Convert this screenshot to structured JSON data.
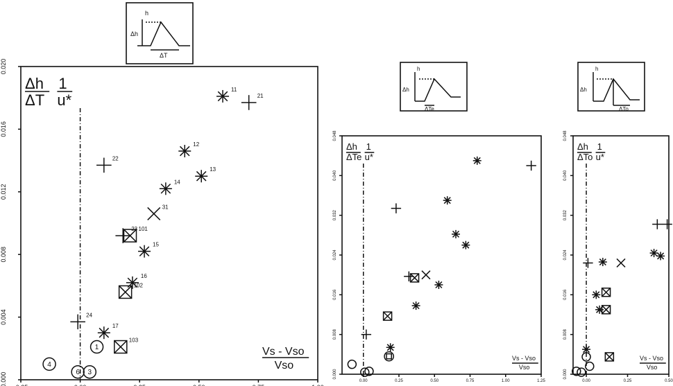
{
  "chart_data": [
    {
      "type": "scatter",
      "ylabel_num": "Δh",
      "ylabel_den": "ΔT",
      "ylabel_frac_num": "1",
      "ylabel_frac_den": "u*",
      "xlabel_num": "Vs - Vso",
      "xlabel_den": "Vso",
      "xlim": [
        -0.25,
        1.0
      ],
      "ylim": [
        0.0,
        0.02
      ],
      "xticks": [
        -0.25,
        0.0,
        0.25,
        0.5,
        0.75,
        1.0
      ],
      "xtick_labels": [
        "-0.25",
        "0.00",
        "0.25",
        "0.50",
        "0.75",
        "1.00"
      ],
      "yticks": [
        0.0,
        0.004,
        0.008,
        0.012,
        0.016,
        0.02
      ],
      "ytick_labels": [
        "0.000",
        "0.004",
        "0.008",
        "0.012",
        "0.016",
        "0.020"
      ],
      "points": [
        {
          "label": "11",
          "x": 0.6,
          "y": 0.0181,
          "marker": "asterisk"
        },
        {
          "label": "21",
          "x": 0.71,
          "y": 0.0177,
          "marker": "plus"
        },
        {
          "label": "12",
          "x": 0.44,
          "y": 0.0146,
          "marker": "asterisk"
        },
        {
          "label": "22",
          "x": 0.1,
          "y": 0.0137,
          "marker": "plus"
        },
        {
          "label": "13",
          "x": 0.51,
          "y": 0.013,
          "marker": "asterisk"
        },
        {
          "label": "14",
          "x": 0.36,
          "y": 0.0122,
          "marker": "asterisk"
        },
        {
          "label": "31",
          "x": 0.31,
          "y": 0.0106,
          "marker": "cross"
        },
        {
          "label": "101",
          "x": 0.21,
          "y": 0.0092,
          "marker": "boxcross"
        },
        {
          "label": "23",
          "x": 0.18,
          "y": 0.0092,
          "marker": "plus"
        },
        {
          "label": "15",
          "x": 0.27,
          "y": 0.0082,
          "marker": "asterisk"
        },
        {
          "label": "16",
          "x": 0.22,
          "y": 0.0062,
          "marker": "asterisk"
        },
        {
          "label": "102",
          "x": 0.19,
          "y": 0.0056,
          "marker": "boxcross"
        },
        {
          "label": "24",
          "x": -0.01,
          "y": 0.0037,
          "marker": "plus"
        },
        {
          "label": "17",
          "x": 0.1,
          "y": 0.003,
          "marker": "asterisk"
        },
        {
          "label": "103",
          "x": 0.17,
          "y": 0.0021,
          "marker": "boxcross"
        },
        {
          "label": "1",
          "x": 0.07,
          "y": 0.0021,
          "marker": "circle"
        },
        {
          "label": "4",
          "x": -0.13,
          "y": 0.001,
          "marker": "circle"
        },
        {
          "label": "6",
          "x": -0.01,
          "y": 0.0005,
          "marker": "circle"
        },
        {
          "label": "3",
          "x": 0.04,
          "y": 0.0005,
          "marker": "circle"
        }
      ]
    },
    {
      "type": "scatter",
      "ylabel_num": "Δh",
      "ylabel_den": "ΔTe",
      "ylabel_frac_num": "1",
      "ylabel_frac_den": "u*",
      "xlabel_num": "Vs - Vso",
      "xlabel_den": "Vso",
      "xlim": [
        -0.15,
        1.25
      ],
      "ylim": [
        0.0,
        0.048
      ],
      "xticks": [
        0.0,
        0.25,
        0.5,
        0.75,
        1.0,
        1.25
      ],
      "xtick_labels": [
        "0.00",
        "0.25",
        "0.50",
        "0.75",
        "1.00",
        "1.25"
      ],
      "yticks": [
        0.0,
        0.008,
        0.016,
        0.024,
        0.032,
        0.04,
        0.048
      ],
      "ytick_labels": [
        "0.000",
        "0.008",
        "0.016",
        "0.024",
        "0.032",
        "0.040",
        "0.048"
      ],
      "points": [
        {
          "x": 0.8,
          "y": 0.043,
          "marker": "asterisk"
        },
        {
          "x": 1.18,
          "y": 0.042,
          "marker": "plus"
        },
        {
          "x": 0.59,
          "y": 0.035,
          "marker": "asterisk"
        },
        {
          "x": 0.23,
          "y": 0.0334,
          "marker": "plus"
        },
        {
          "x": 0.65,
          "y": 0.0282,
          "marker": "asterisk"
        },
        {
          "x": 0.72,
          "y": 0.026,
          "marker": "asterisk"
        },
        {
          "x": 0.44,
          "y": 0.02,
          "marker": "cross"
        },
        {
          "x": 0.32,
          "y": 0.0197,
          "marker": "plus"
        },
        {
          "x": 0.36,
          "y": 0.0194,
          "marker": "boxcross"
        },
        {
          "x": 0.53,
          "y": 0.018,
          "marker": "asterisk"
        },
        {
          "x": 0.37,
          "y": 0.0138,
          "marker": "asterisk"
        },
        {
          "x": 0.17,
          "y": 0.0117,
          "marker": "boxcross"
        },
        {
          "x": 0.02,
          "y": 0.008,
          "marker": "plus"
        },
        {
          "x": 0.19,
          "y": 0.0054,
          "marker": "asterisk"
        },
        {
          "x": 0.18,
          "y": 0.0036,
          "marker": "circlebox"
        },
        {
          "x": -0.08,
          "y": 0.002,
          "marker": "circle"
        },
        {
          "x": 0.01,
          "y": 0.0004,
          "marker": "circle"
        },
        {
          "x": 0.04,
          "y": 0.0006,
          "marker": "circle"
        }
      ]
    },
    {
      "type": "scatter",
      "ylabel_num": "Δh",
      "ylabel_den": "ΔTo",
      "ylabel_frac_num": "1",
      "ylabel_frac_den": "u*",
      "xlabel_num": "Vs - Vso",
      "xlabel_den": "Vso",
      "xlim": [
        -0.08,
        0.5
      ],
      "ylim": [
        0.0,
        0.048
      ],
      "xticks": [
        0.0,
        0.25,
        0.5
      ],
      "xtick_labels": [
        "0.00",
        "0.25",
        "0.50"
      ],
      "yticks": [
        0.0,
        0.008,
        0.016,
        0.024,
        0.032,
        0.04,
        0.048
      ],
      "ytick_labels": [
        "0.000",
        "0.008",
        "0.016",
        "0.024",
        "0.032",
        "0.040",
        "0.048"
      ],
      "points": [
        {
          "x": 0.43,
          "y": 0.0302,
          "marker": "plus"
        },
        {
          "x": 0.49,
          "y": 0.0302,
          "marker": "plus"
        },
        {
          "x": 0.41,
          "y": 0.0244,
          "marker": "asterisk"
        },
        {
          "x": 0.45,
          "y": 0.0238,
          "marker": "asterisk"
        },
        {
          "x": 0.01,
          "y": 0.0224,
          "marker": "plus"
        },
        {
          "x": 0.1,
          "y": 0.0226,
          "marker": "asterisk"
        },
        {
          "x": 0.21,
          "y": 0.0224,
          "marker": "cross"
        },
        {
          "x": 0.12,
          "y": 0.0165,
          "marker": "boxcross"
        },
        {
          "x": 0.06,
          "y": 0.016,
          "marker": "asterisk"
        },
        {
          "x": 0.08,
          "y": 0.013,
          "marker": "asterisk"
        },
        {
          "x": 0.12,
          "y": 0.013,
          "marker": "boxcross"
        },
        {
          "x": 0.0,
          "y": 0.005,
          "marker": "asterisk"
        },
        {
          "x": 0.14,
          "y": 0.0035,
          "marker": "boxcross"
        },
        {
          "x": 0.0,
          "y": 0.0035,
          "marker": "circle"
        },
        {
          "x": -0.06,
          "y": 0.0006,
          "marker": "circle"
        },
        {
          "x": -0.03,
          "y": 0.0004,
          "marker": "circle"
        },
        {
          "x": 0.02,
          "y": 0.0016,
          "marker": "circle"
        }
      ]
    }
  ],
  "insets": [
    {
      "bottom_label": "ΔT",
      "side_label": "Δh",
      "top_label": "h"
    },
    {
      "bottom_label": "ΔTe",
      "side_label": "Δh",
      "top_label": "h"
    },
    {
      "bottom_label": "ΔTo",
      "side_label": "Δh",
      "top_label": "h"
    }
  ]
}
